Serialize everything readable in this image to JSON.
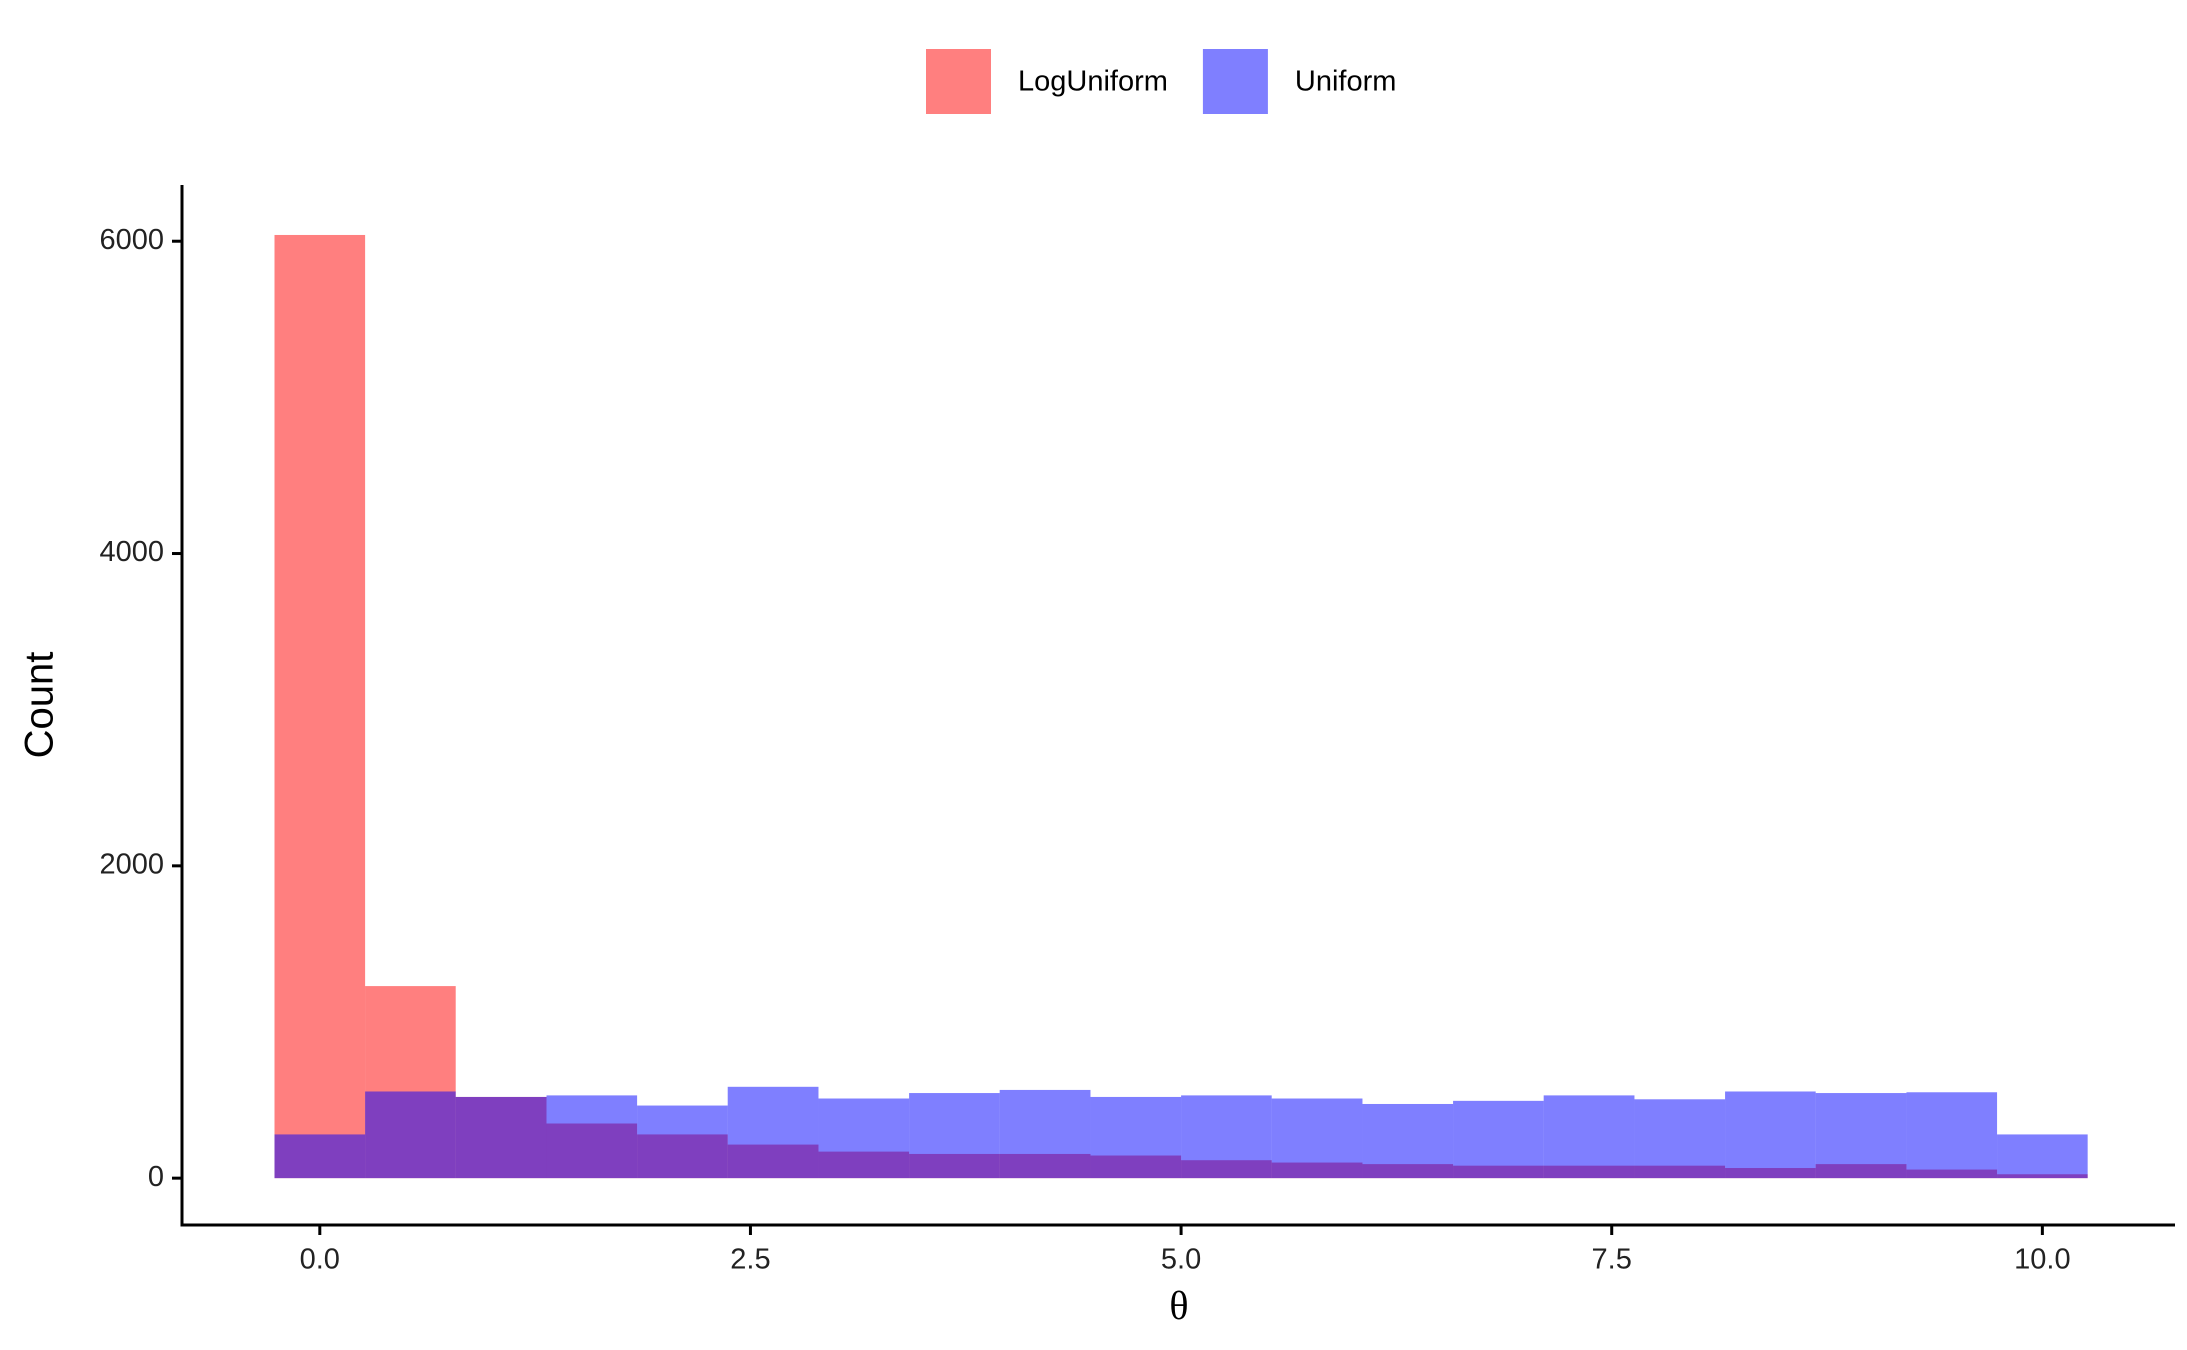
{
  "chart_data": {
    "type": "histogram",
    "bins": [
      -0.263,
      0.263,
      0.789,
      1.316,
      1.842,
      2.368,
      2.895,
      3.421,
      3.947,
      4.474,
      5.0,
      5.526,
      6.053,
      6.579,
      7.105,
      7.632,
      8.158,
      8.684,
      9.211,
      9.737,
      10.263
    ],
    "series": [
      {
        "name": "LogUniform",
        "color": "#ff0000",
        "values": [
          6040,
          1230,
          520,
          350,
          280,
          215,
          170,
          155,
          155,
          145,
          115,
          100,
          90,
          80,
          80,
          80,
          65,
          90,
          55,
          25
        ]
      },
      {
        "name": "Uniform",
        "color": "#0000ff",
        "values": [
          280,
          555,
          520,
          530,
          465,
          585,
          510,
          545,
          565,
          520,
          530,
          510,
          475,
          495,
          530,
          505,
          555,
          545,
          550,
          280
        ]
      }
    ],
    "opacity": 0.5,
    "x_label": "θ",
    "y_label": "Count",
    "xlim": [
      -0.8,
      10.77
    ],
    "ylim": [
      -300,
      6360
    ],
    "xticks": [
      {
        "value": 0,
        "label": "0.0"
      },
      {
        "value": 2.5,
        "label": "2.5"
      },
      {
        "value": 5,
        "label": "5.0"
      },
      {
        "value": 7.5,
        "label": "7.5"
      },
      {
        "value": 10,
        "label": "10.0"
      }
    ],
    "yticks": [
      0,
      2000,
      4000,
      6000
    ],
    "legend": "top"
  }
}
